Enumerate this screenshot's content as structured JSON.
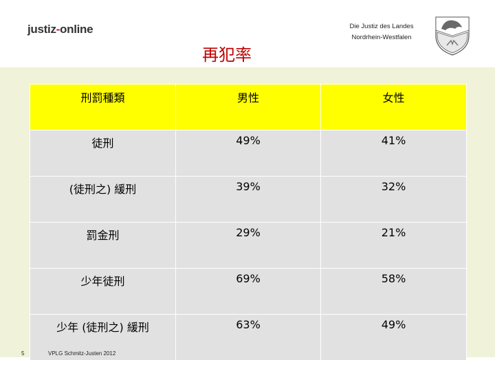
{
  "header": {
    "logo_prefix": "justiz",
    "logo_dash": "-",
    "logo_suffix": "online",
    "org_line1": "Die Justiz des Landes",
    "org_line2": "Nordrhein-Westfalen"
  },
  "title": "再犯率",
  "table": {
    "headers": [
      "刑罰種類",
      "男性",
      "女性"
    ],
    "rows": [
      [
        "徒刑",
        "49%",
        "41%"
      ],
      [
        "(徒刑之) 緩刑",
        "39%",
        "32%"
      ],
      [
        "罰金刑",
        "29%",
        "21%"
      ],
      [
        "少年徒刑",
        "69%",
        "58%"
      ],
      [
        "少年 (徒刑之) 緩刑",
        "63%",
        "49%"
      ]
    ]
  },
  "footer": {
    "page_number": "5",
    "source": "VPLG Schmitz-Justen 2012"
  },
  "colors": {
    "header_fill": "#ffff00",
    "cell_fill": "#e1e1e1",
    "band": "#f0f3d9",
    "title": "#c00000"
  },
  "icons": [
    "nrw-coat-of-arms-icon"
  ]
}
